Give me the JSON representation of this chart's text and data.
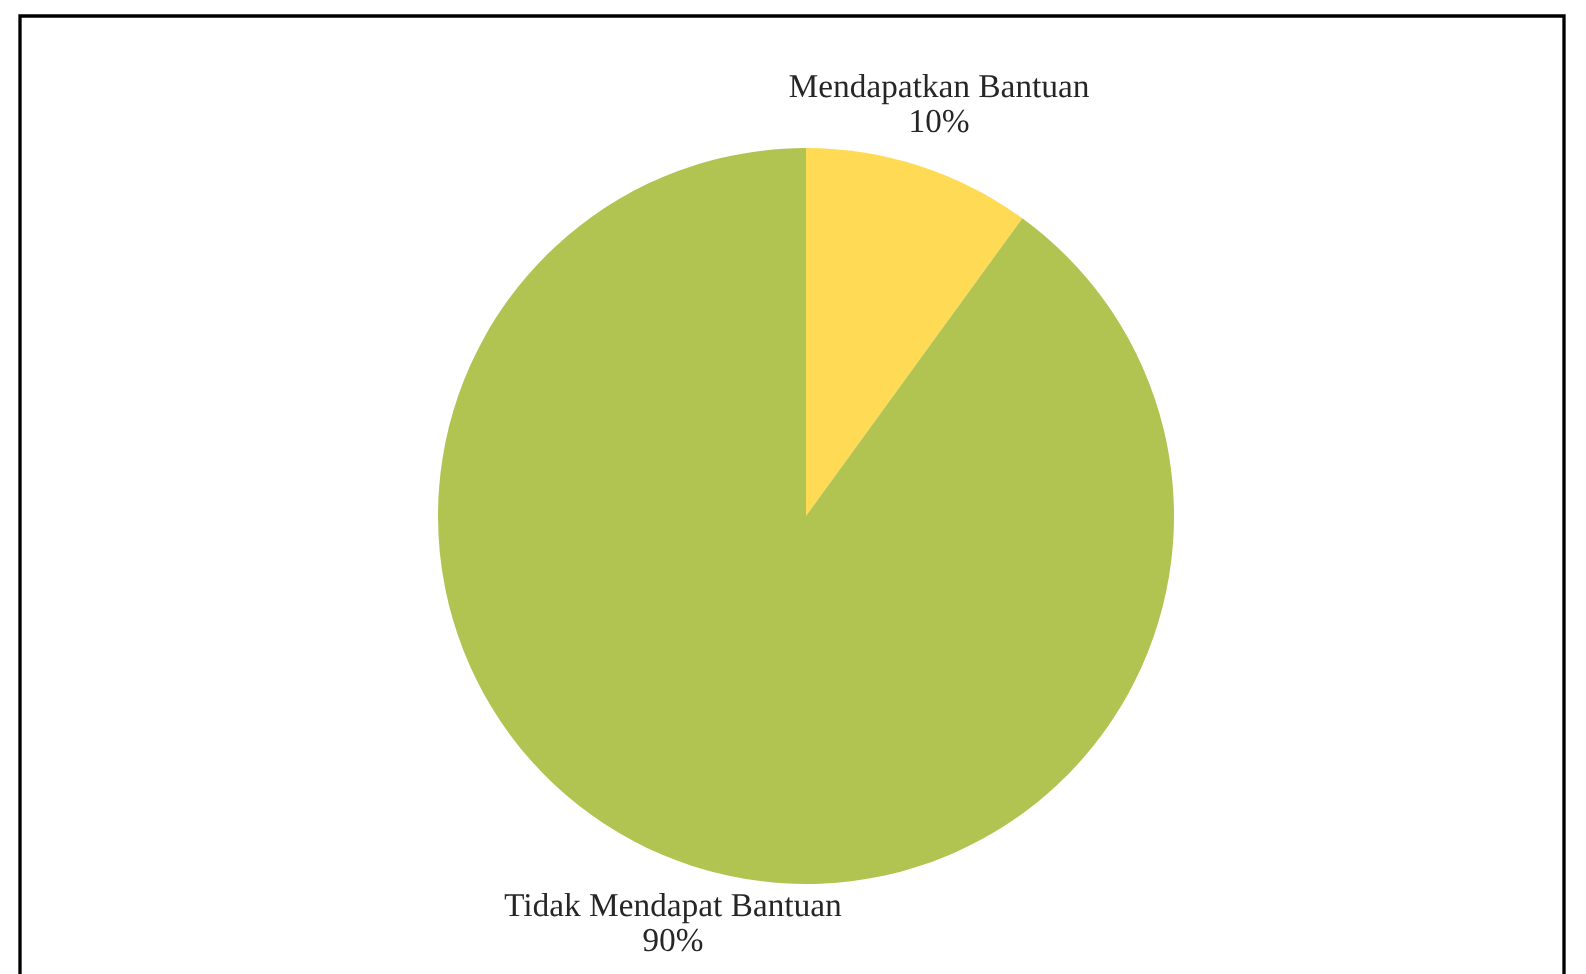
{
  "chart_data": {
    "type": "pie",
    "categories": [
      "Mendapatkan Bantuan",
      "Tidak Mendapat Bantuan"
    ],
    "values": [
      10,
      90
    ],
    "value_labels": [
      "10%",
      "90%"
    ],
    "colors": [
      "#ffda55",
      "#b1c350"
    ]
  }
}
